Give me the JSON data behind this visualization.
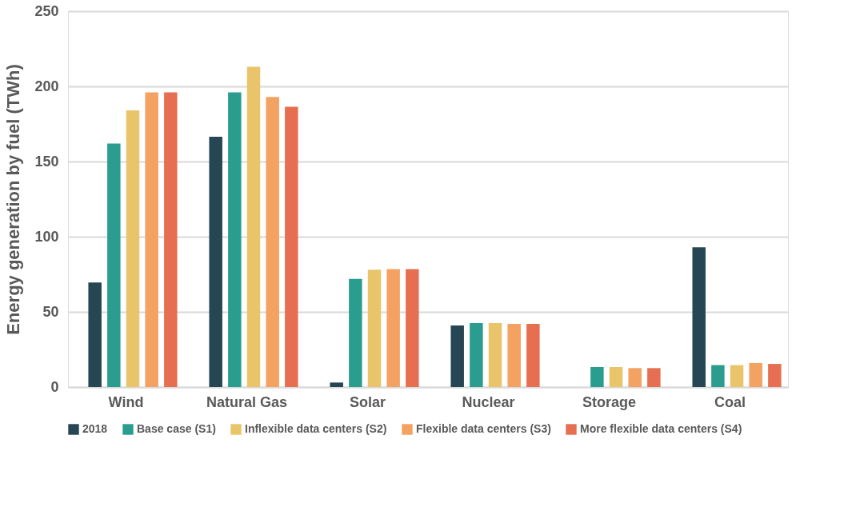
{
  "chart_data": {
    "type": "bar",
    "ylabel": "Energy generation by fuel (TWh)",
    "categories": [
      "Wind",
      "Natural Gas",
      "Solar",
      "Nuclear",
      "Storage",
      "Coal"
    ],
    "series": [
      {
        "name": "2018",
        "color": "#264653",
        "values": [
          69.5,
          166.5,
          3,
          41,
          null,
          93
        ]
      },
      {
        "name": "Base case (S1)",
        "color": "#2a9d8f",
        "values": [
          162,
          196,
          72,
          42.5,
          13.3,
          14.6
        ]
      },
      {
        "name": "Inflexible data centers (S2)",
        "color": "#e9c46a",
        "values": [
          184,
          213,
          78,
          42.5,
          13.3,
          14.6
        ]
      },
      {
        "name": "Flexible data centers (S3)",
        "color": "#f4a261",
        "values": [
          196,
          193,
          78.5,
          42,
          12.6,
          16
        ]
      },
      {
        "name": "More flexible data centers (S4)",
        "color": "#e76f51",
        "values": [
          196,
          186.5,
          78.5,
          42,
          12.6,
          15.4
        ]
      }
    ],
    "ylim": [
      0,
      250
    ],
    "yticks": [
      0,
      50,
      100,
      150,
      200,
      250
    ],
    "grid": "y",
    "legend": "bottom"
  }
}
